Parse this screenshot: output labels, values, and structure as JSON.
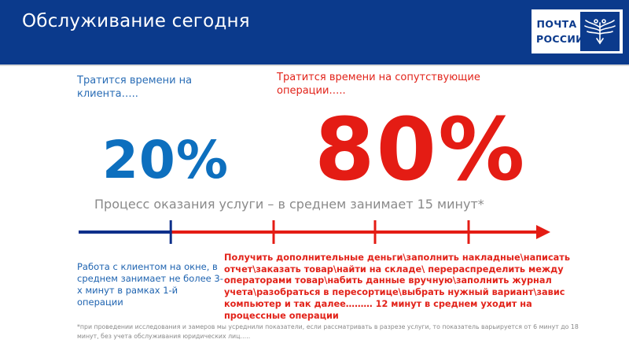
{
  "header": {
    "title": "Обслуживание сегодня",
    "logo": {
      "line1": "ПОЧТА",
      "line2": "РОССИИ",
      "emblem_icon": "double-headed-eagle-icon"
    }
  },
  "client_time": {
    "label": "Тратится времени на клиента…..",
    "percent": "20%"
  },
  "side_operations": {
    "label": "Тратится времени на сопутствующие операции…..",
    "percent": "80%"
  },
  "process": {
    "caption": "Процесс оказания услуги – в среднем занимает 15 минут*"
  },
  "timeline": {
    "client_share": 0.2,
    "colors": {
      "client": "#0d2f8a",
      "operations": "#e41c14"
    }
  },
  "notes": {
    "client": "Работа с клиентом на окне, в среднем занимает не более 3-х минут в рамках 1-й операции",
    "operations": "Получить дополнительные деньги\\заполнить накладные\\написать отчет\\заказать товар\\найти на складе\\ перераспределить между операторами товар\\набить данные вручную\\заполнить журнал учета\\разобраться в пересортице\\выбрать нужный вариант\\завис компьютер и так далее……… 12 минут в среднем уходит на процессные операции"
  },
  "footnote": "*при проведении исследования и замеров мы усреднили показатели, если рассматривать в разрезе услуги, то показатель варьируется от 6 минут до 18 минут, без учета обслуживания юридических лиц…..",
  "colors": {
    "brand_blue": "#0b3a8c",
    "accent_red": "#e41c14",
    "accent_blue": "#0d6fbe"
  }
}
